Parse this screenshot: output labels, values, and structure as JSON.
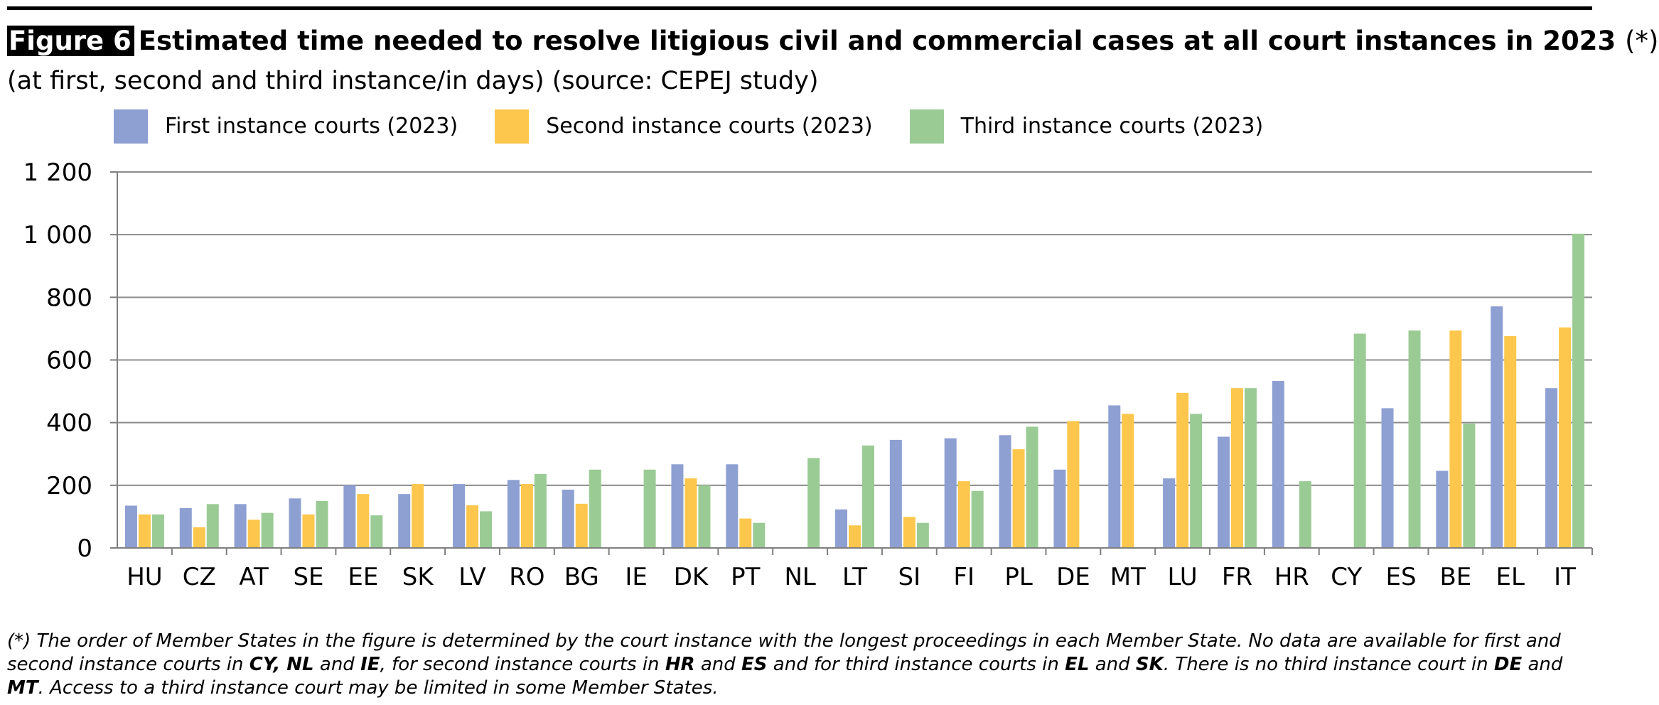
{
  "figure_label": "Figure 6",
  "title": "Estimated time needed to resolve litigious civil and commercial cases at all court instances in 2023",
  "title_note": "(*)",
  "subtitle": "(at first, second and third instance/in days) (source: CEPEJ study)",
  "footnote": {
    "p1": "(*) The order of Member States in the figure is determined by the court instance with the longest proceedings in each Member State. No data are available for first and second instance courts in ",
    "c1": "CY, NL",
    "p2": " and ",
    "c2": "IE",
    "p3": ", for second instance courts in ",
    "c3": "HR",
    "p4": " and ",
    "c4": "ES",
    "p5": " and for third instance courts in ",
    "c5": "EL",
    "p6": " and ",
    "c6": "SK",
    "p7": ". There is no third instance court in ",
    "c7": "DE",
    "p8": " and ",
    "c8": "MT",
    "p9": ". Access to a third instance court may be limited in some Member States."
  },
  "chart_data": {
    "type": "bar",
    "ylim": [
      0,
      1200
    ],
    "yticks": [
      0,
      200,
      400,
      600,
      800,
      1000,
      1200
    ],
    "ytick_labels": [
      "0",
      "200",
      "400",
      "600",
      "800",
      "1 000",
      "1 200"
    ],
    "grid": true,
    "legend_position": "top",
    "categories": [
      "HU",
      "CZ",
      "AT",
      "SE",
      "EE",
      "SK",
      "LV",
      "RO",
      "BG",
      "IE",
      "DK",
      "PT",
      "NL",
      "LT",
      "SI",
      "FI",
      "PL",
      "DE",
      "MT",
      "LU",
      "FR",
      "HR",
      "CY",
      "ES",
      "BE",
      "EL",
      "IT"
    ],
    "series": [
      {
        "name": "First instance courts (2023)",
        "color": "#8ea0d2",
        "values": [
          135,
          127,
          140,
          158,
          200,
          172,
          204,
          217,
          186,
          null,
          267,
          267,
          null,
          123,
          345,
          350,
          360,
          250,
          455,
          222,
          355,
          533,
          null,
          446,
          246,
          771,
          510
        ]
      },
      {
        "name": "Second instance courts (2023)",
        "color": "#fcc74c",
        "values": [
          107,
          66,
          90,
          107,
          172,
          204,
          136,
          204,
          141,
          null,
          222,
          94,
          null,
          72,
          99,
          213,
          315,
          405,
          428,
          495,
          510,
          null,
          null,
          null,
          694,
          676,
          704
        ]
      },
      {
        "name": "Third instance courts (2023)",
        "color": "#9bcb95",
        "values": [
          107,
          140,
          112,
          150,
          104,
          null,
          117,
          236,
          250,
          250,
          200,
          80,
          287,
          327,
          80,
          182,
          387,
          null,
          null,
          428,
          510,
          213,
          684,
          694,
          397,
          null,
          1003
        ]
      }
    ]
  }
}
